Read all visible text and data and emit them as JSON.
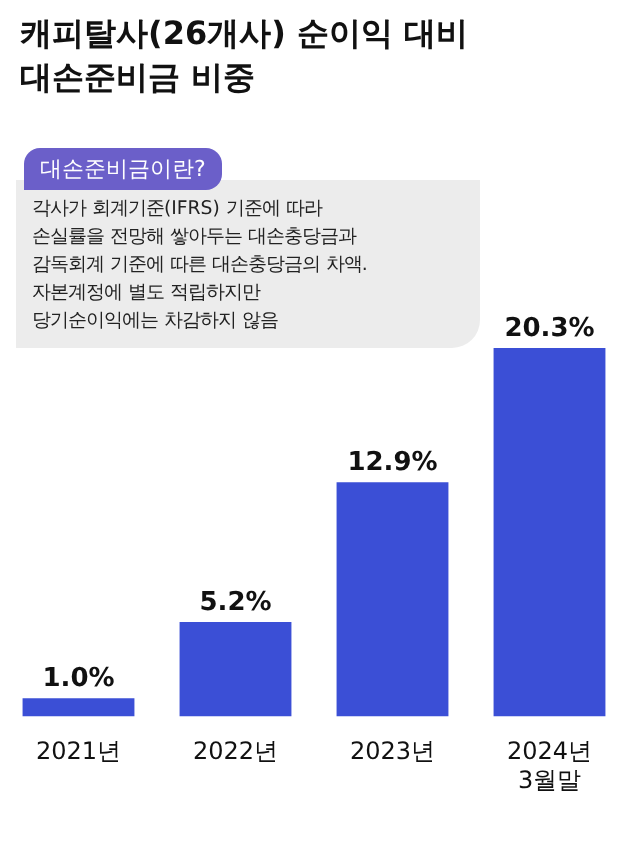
{
  "chart_data": {
    "type": "bar",
    "title": "캐피탈사(26개사) 순이익 대비\n대손준비금 비중",
    "categories": [
      "2021년",
      "2022년",
      "2023년",
      "2024년\n3월말"
    ],
    "values": [
      1.0,
      5.2,
      12.9,
      20.3
    ],
    "value_labels": [
      "1.0%",
      "5.2%",
      "12.9%",
      "20.3%"
    ],
    "color": "#3b4fd6",
    "annotations": [
      "대손준비금이란?",
      "각사가 회계기준(IFRS) 기준에 따라\n손실률을 전망해 쌓아두는 대손충당금과\n감독회계 기준에 따른 대손충당금의 차액.\n자본계정에 별도 적립하지만\n당기순이익에는 차감하지 않음"
    ]
  }
}
